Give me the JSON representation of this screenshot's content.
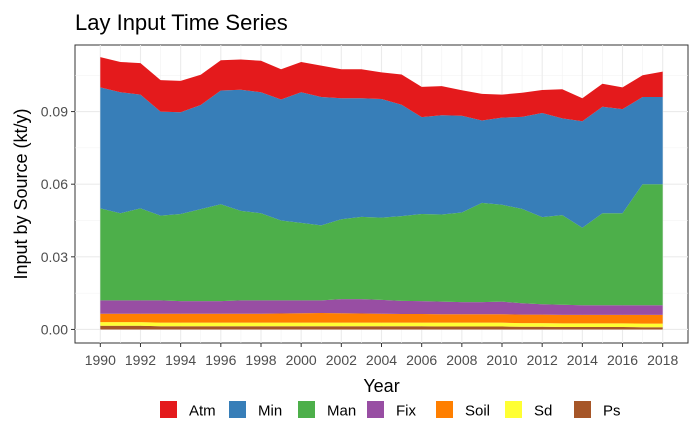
{
  "chart_data": {
    "type": "area",
    "stacked": true,
    "title": "Lay Input Time Series",
    "xlabel": "Year",
    "ylabel": "Input by Source (kt/y)",
    "xlim": [
      1990,
      2018
    ],
    "ylim": [
      0,
      0.112
    ],
    "x_ticks": [
      1990,
      1992,
      1994,
      1996,
      1998,
      2000,
      2002,
      2004,
      2006,
      2008,
      2010,
      2012,
      2014,
      2016,
      2018
    ],
    "y_ticks": [
      0,
      0.03,
      0.06,
      0.09
    ],
    "y_tick_labels": [
      "0.00",
      "0.03",
      "0.06",
      "0.09"
    ],
    "grid": true,
    "legend_position": "bottom",
    "x": [
      1990,
      1991,
      1992,
      1993,
      1994,
      1995,
      1996,
      1997,
      1998,
      1999,
      2000,
      2001,
      2002,
      2003,
      2004,
      2005,
      2006,
      2007,
      2008,
      2009,
      2010,
      2011,
      2012,
      2013,
      2014,
      2015,
      2016,
      2017,
      2018
    ],
    "series": [
      {
        "name": "Ps",
        "color": "#A65628",
        "values": [
          0.0015,
          0.0015,
          0.0015,
          0.0013,
          0.0013,
          0.0013,
          0.0013,
          0.0013,
          0.0013,
          0.0013,
          0.0013,
          0.0013,
          0.0013,
          0.0013,
          0.0013,
          0.0013,
          0.0013,
          0.0012,
          0.0012,
          0.0012,
          0.0012,
          0.0011,
          0.0011,
          0.001,
          0.001,
          0.001,
          0.001,
          0.0009,
          0.0009
        ]
      },
      {
        "name": "Sd",
        "color": "#FFFF33",
        "values": [
          0.0015,
          0.0015,
          0.0015,
          0.0015,
          0.0015,
          0.0015,
          0.0015,
          0.0015,
          0.0015,
          0.0015,
          0.0015,
          0.0015,
          0.0015,
          0.0015,
          0.0015,
          0.0015,
          0.0015,
          0.0016,
          0.0016,
          0.0016,
          0.0016,
          0.0015,
          0.0015,
          0.0015,
          0.0015,
          0.0015,
          0.0015,
          0.0015,
          0.0015
        ]
      },
      {
        "name": "Soil",
        "color": "#FF7F00",
        "values": [
          0.0035,
          0.0035,
          0.0035,
          0.0037,
          0.0037,
          0.0037,
          0.0037,
          0.0037,
          0.0037,
          0.0038,
          0.0039,
          0.004,
          0.0039,
          0.0038,
          0.0037,
          0.0036,
          0.0036,
          0.0035,
          0.0035,
          0.0035,
          0.0035,
          0.0035,
          0.0035,
          0.0035,
          0.0035,
          0.0035,
          0.0035,
          0.0036,
          0.0036
        ]
      },
      {
        "name": "Fix",
        "color": "#984EA3",
        "values": [
          0.0055,
          0.0055,
          0.0055,
          0.0055,
          0.0052,
          0.0052,
          0.0052,
          0.0055,
          0.0055,
          0.0054,
          0.0053,
          0.0052,
          0.0058,
          0.0059,
          0.0057,
          0.0054,
          0.0053,
          0.0052,
          0.005,
          0.005,
          0.0052,
          0.0047,
          0.0043,
          0.0042,
          0.004,
          0.004,
          0.004,
          0.004,
          0.004
        ]
      },
      {
        "name": "Man",
        "color": "#4DAF4A",
        "values": [
          0.038,
          0.036,
          0.038,
          0.035,
          0.036,
          0.038,
          0.04,
          0.037,
          0.036,
          0.033,
          0.032,
          0.031,
          0.033,
          0.034,
          0.034,
          0.035,
          0.036,
          0.036,
          0.037,
          0.041,
          0.04,
          0.039,
          0.036,
          0.037,
          0.032,
          0.038,
          0.038,
          0.05,
          0.05
        ]
      },
      {
        "name": "Min",
        "color": "#377EB8",
        "values": [
          0.05,
          0.05,
          0.047,
          0.043,
          0.042,
          0.043,
          0.047,
          0.05,
          0.05,
          0.05,
          0.054,
          0.053,
          0.05,
          0.049,
          0.049,
          0.046,
          0.04,
          0.041,
          0.04,
          0.034,
          0.036,
          0.038,
          0.043,
          0.04,
          0.044,
          0.044,
          0.043,
          0.036,
          0.036
        ]
      },
      {
        "name": "Atm",
        "color": "#E41A1C",
        "values": [
          0.0125,
          0.0125,
          0.013,
          0.013,
          0.013,
          0.0125,
          0.0125,
          0.0125,
          0.013,
          0.0125,
          0.0125,
          0.013,
          0.012,
          0.012,
          0.011,
          0.0125,
          0.0125,
          0.012,
          0.0105,
          0.011,
          0.0095,
          0.01,
          0.0095,
          0.012,
          0.0095,
          0.0095,
          0.009,
          0.009,
          0.0105
        ]
      }
    ],
    "legend_order": [
      "Atm",
      "Min",
      "Man",
      "Fix",
      "Soil",
      "Sd",
      "Ps"
    ]
  }
}
